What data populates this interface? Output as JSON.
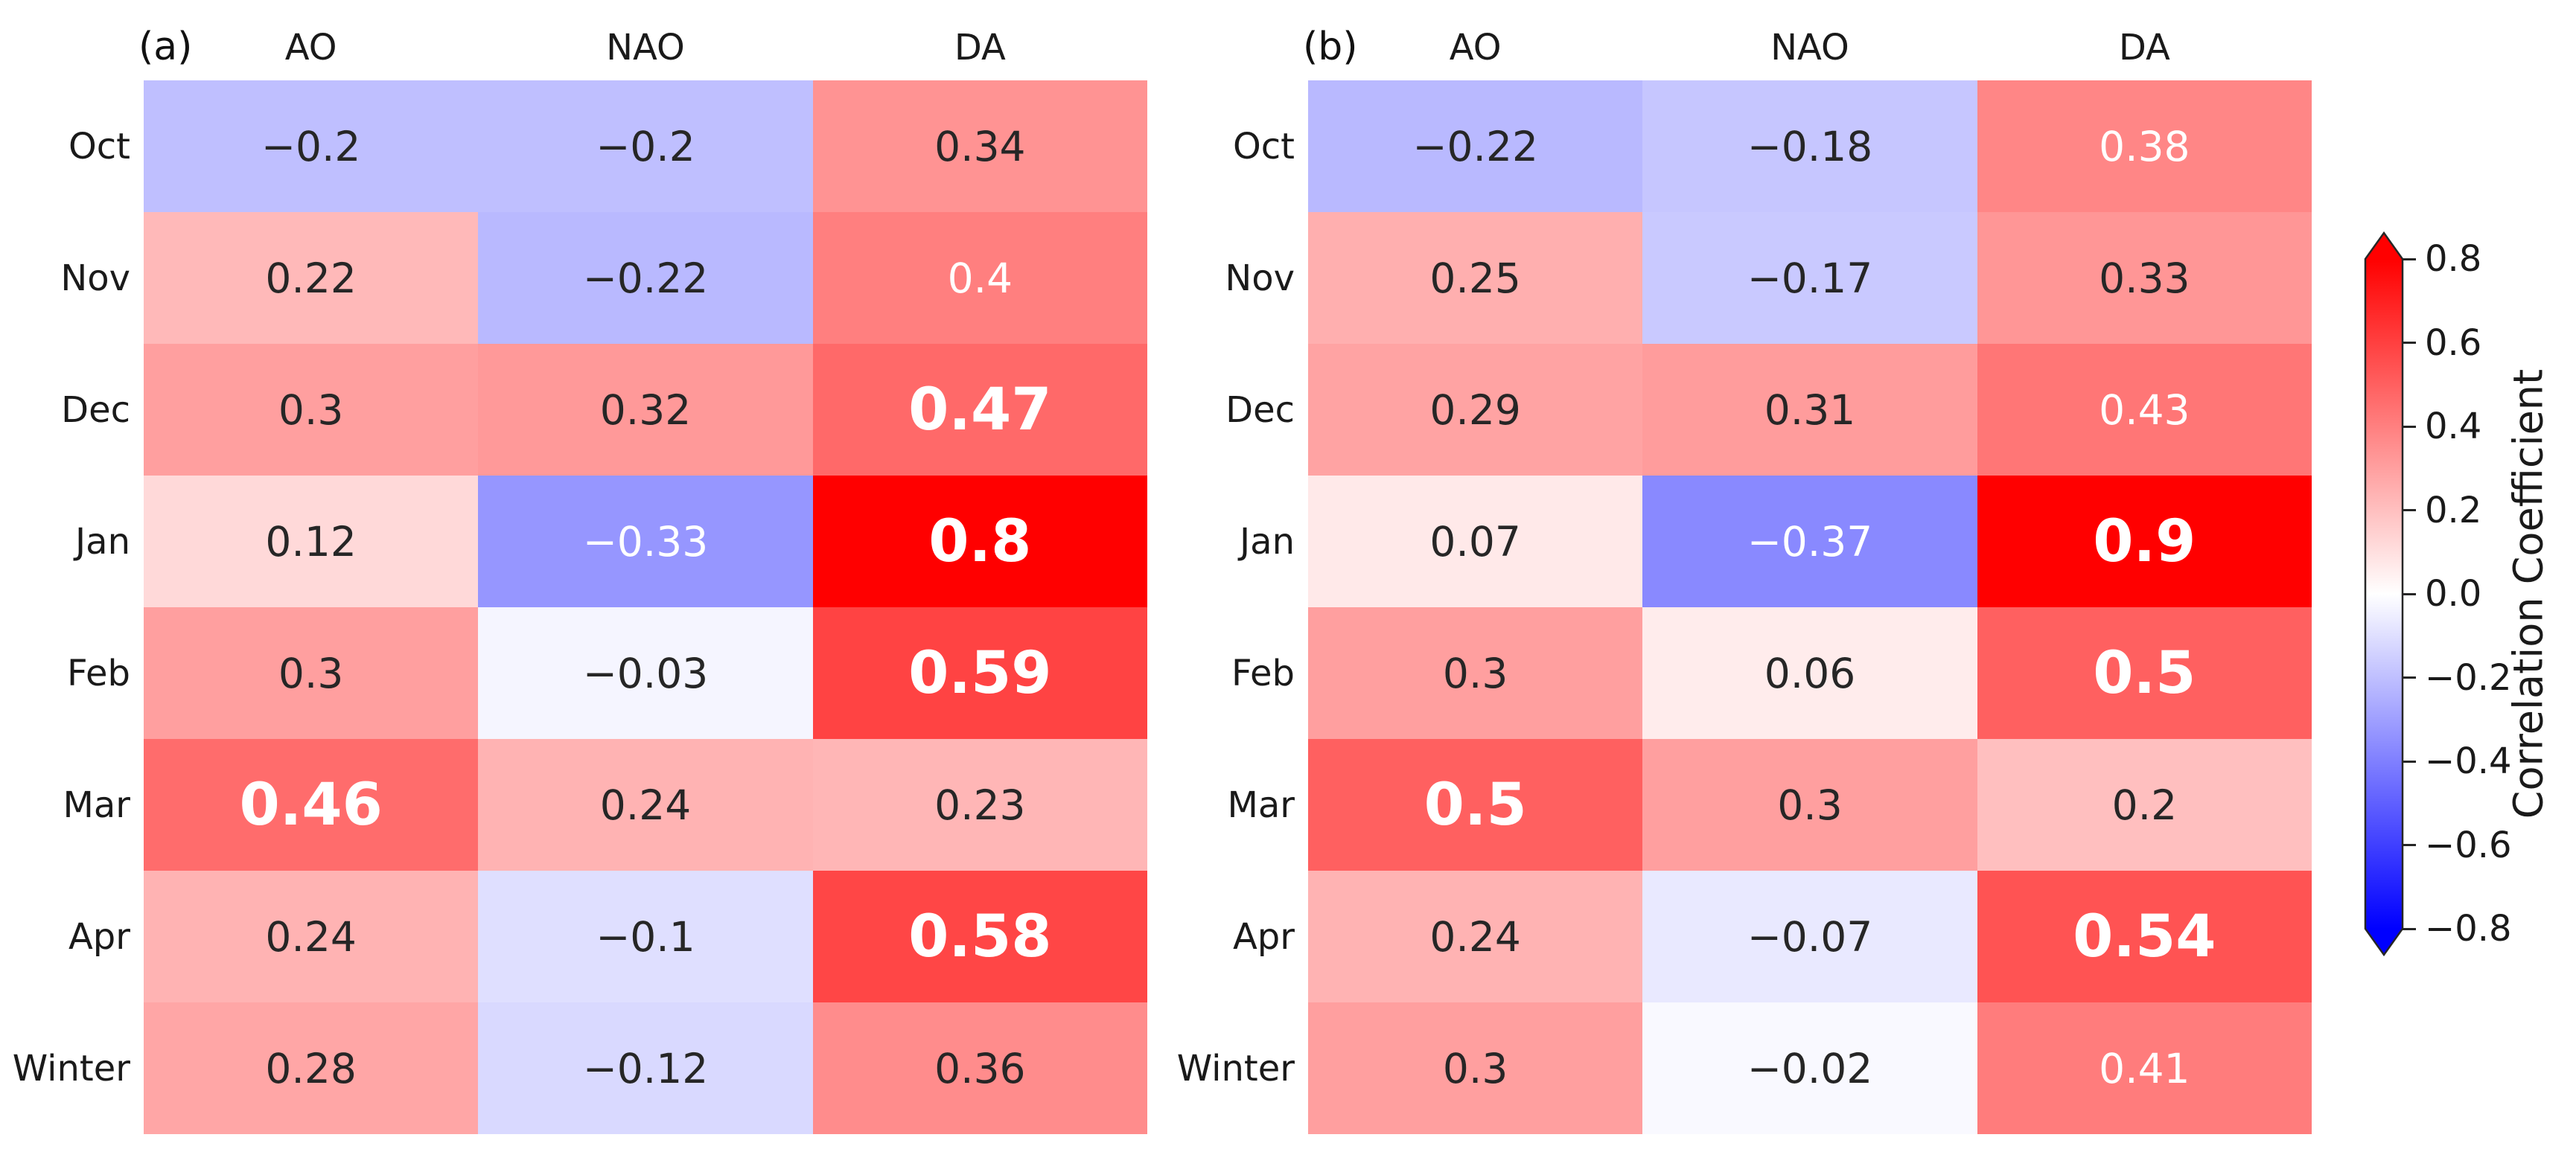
{
  "chart_data": {
    "type": "heatmap",
    "colormap": "bwr",
    "vmin": -0.8,
    "vmax": 0.8,
    "annotation_colors": {
      "dark": "#262626",
      "light": "#ffffff"
    },
    "panels": [
      {
        "panel_label": "(a)",
        "columns": [
          "AO",
          "NAO",
          "DA"
        ],
        "rows": [
          "Oct",
          "Nov",
          "Dec",
          "Jan",
          "Feb",
          "Mar",
          "Apr",
          "Winter"
        ],
        "values": [
          [
            -0.2,
            -0.2,
            0.34
          ],
          [
            0.22,
            -0.22,
            0.4
          ],
          [
            0.3,
            0.32,
            0.47
          ],
          [
            0.12,
            -0.33,
            0.8
          ],
          [
            0.3,
            -0.03,
            0.59
          ],
          [
            0.46,
            0.24,
            0.23
          ],
          [
            0.24,
            -0.1,
            0.58
          ],
          [
            0.28,
            -0.12,
            0.36
          ]
        ],
        "bold_cells": [
          [
            false,
            false,
            false
          ],
          [
            false,
            false,
            false
          ],
          [
            false,
            false,
            true
          ],
          [
            false,
            false,
            true
          ],
          [
            false,
            false,
            true
          ],
          [
            true,
            false,
            false
          ],
          [
            false,
            false,
            true
          ],
          [
            false,
            false,
            false
          ]
        ]
      },
      {
        "panel_label": "(b)",
        "columns": [
          "AO",
          "NAO",
          "DA"
        ],
        "rows": [
          "Oct",
          "Nov",
          "Dec",
          "Jan",
          "Feb",
          "Mar",
          "Apr",
          "Winter"
        ],
        "values": [
          [
            -0.22,
            -0.18,
            0.38
          ],
          [
            0.25,
            -0.17,
            0.33
          ],
          [
            0.29,
            0.31,
            0.43
          ],
          [
            0.07,
            -0.37,
            0.9
          ],
          [
            0.3,
            0.06,
            0.5
          ],
          [
            0.5,
            0.3,
            0.2
          ],
          [
            0.24,
            -0.07,
            0.54
          ],
          [
            0.3,
            -0.02,
            0.41
          ]
        ],
        "bold_cells": [
          [
            false,
            false,
            false
          ],
          [
            false,
            false,
            false
          ],
          [
            false,
            false,
            false
          ],
          [
            false,
            false,
            true
          ],
          [
            false,
            false,
            true
          ],
          [
            true,
            false,
            false
          ],
          [
            false,
            false,
            true
          ],
          [
            false,
            false,
            false
          ]
        ]
      }
    ],
    "colorbar": {
      "label": "Correlation Coefficient",
      "ticks": [
        0.8,
        0.6,
        0.4,
        0.2,
        0.0,
        -0.2,
        -0.4,
        -0.6,
        -0.8
      ],
      "vmin": -0.8,
      "vmax": 0.8,
      "extend": "both",
      "color_positive": "#ff0000",
      "color_zero": "#ffffff",
      "color_negative": "#0000ff",
      "outline_color": "#262626"
    }
  }
}
